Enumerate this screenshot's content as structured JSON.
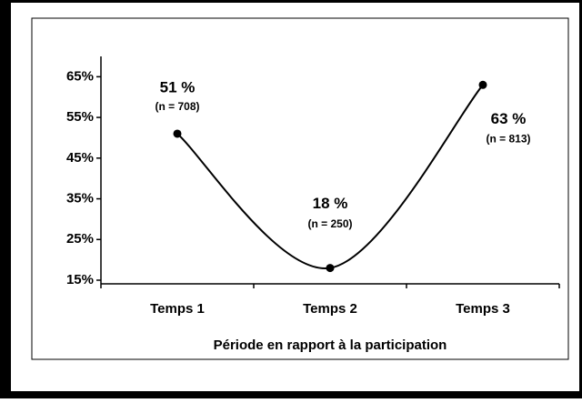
{
  "chart_data": {
    "type": "line",
    "x_label": "Période en rapport à la participation",
    "categories": [
      "Temps 1",
      "Temps 2",
      "Temps 3"
    ],
    "values": [
      51,
      18,
      63
    ],
    "value_labels": [
      "51 %",
      "18 %",
      "63 %"
    ],
    "sample_labels": [
      "(n = 708)",
      "(n = 250)",
      "(n = 813)"
    ],
    "color": "#000000",
    "ylim": [
      15,
      70
    ],
    "yticks": [
      {
        "value": 15,
        "label": "15%"
      },
      {
        "value": 25,
        "label": "25%"
      },
      {
        "value": 35,
        "label": "35%"
      },
      {
        "value": 45,
        "label": "45%"
      },
      {
        "value": 55,
        "label": "55%"
      },
      {
        "value": 65,
        "label": "65%"
      }
    ],
    "smooth": true
  }
}
